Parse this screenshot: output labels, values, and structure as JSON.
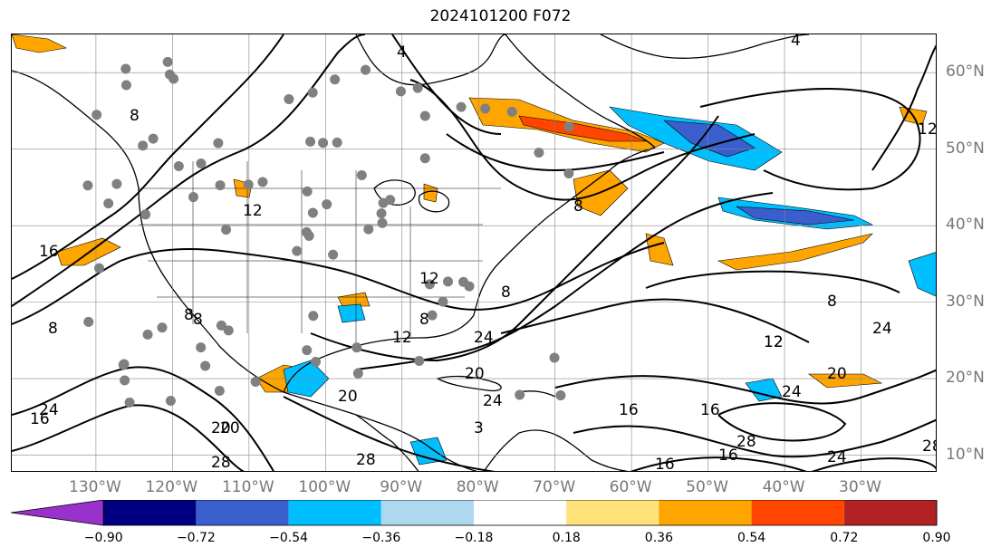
{
  "title": "2024101200 F072",
  "lat_labels": [
    {
      "text": "60°N",
      "lat": 60
    },
    {
      "text": "50°N",
      "lat": 50
    },
    {
      "text": "40°N",
      "lat": 40
    },
    {
      "text": "30°N",
      "lat": 30
    },
    {
      "text": "20°N",
      "lat": 20
    },
    {
      "text": "10°N",
      "lat": 10
    }
  ],
  "lon_labels": [
    {
      "text": "130°W",
      "lon": -130
    },
    {
      "text": "120°W",
      "lon": -120
    },
    {
      "text": "110°W",
      "lon": -110
    },
    {
      "text": "100°W",
      "lon": -100
    },
    {
      "text": "90°W",
      "lon": -90
    },
    {
      "text": "80°W",
      "lon": -80
    },
    {
      "text": "70°W",
      "lon": -70
    },
    {
      "text": "60°W",
      "lon": -60
    },
    {
      "text": "50°W",
      "lon": -50
    },
    {
      "text": "40°W",
      "lon": -40
    },
    {
      "text": "30°W",
      "lon": -30
    }
  ],
  "map_extent": {
    "lon_min": -141,
    "lon_max": -20,
    "lat_min": 7.7,
    "lat_max": 65
  },
  "colorbar": {
    "colors": [
      "#9932cc",
      "#000080",
      "#3a5fcd",
      "#00bfff",
      "#add8f0",
      "#ffffff",
      "#ffe27a",
      "#ffa500",
      "#ff4500",
      "#b22222",
      "#ff80b0"
    ],
    "tick_labels": [
      "−0.90",
      "−0.72",
      "−0.54",
      "−0.36",
      "−0.18",
      "0.18",
      "0.36",
      "0.54",
      "0.72",
      "0.90"
    ]
  },
  "contour_labels": [
    "4",
    "4",
    "8",
    "8",
    "12",
    "12",
    "12",
    "16",
    "16",
    "8",
    "8",
    "8",
    "12",
    "24",
    "8",
    "12",
    "20",
    "24",
    "20",
    "24",
    "20",
    "16",
    "16",
    "20",
    "24",
    "28",
    "28",
    "28",
    "24",
    "28",
    "16",
    "12",
    "8",
    "20",
    "24",
    "16",
    "3",
    "8"
  ],
  "station_markers": 80
}
